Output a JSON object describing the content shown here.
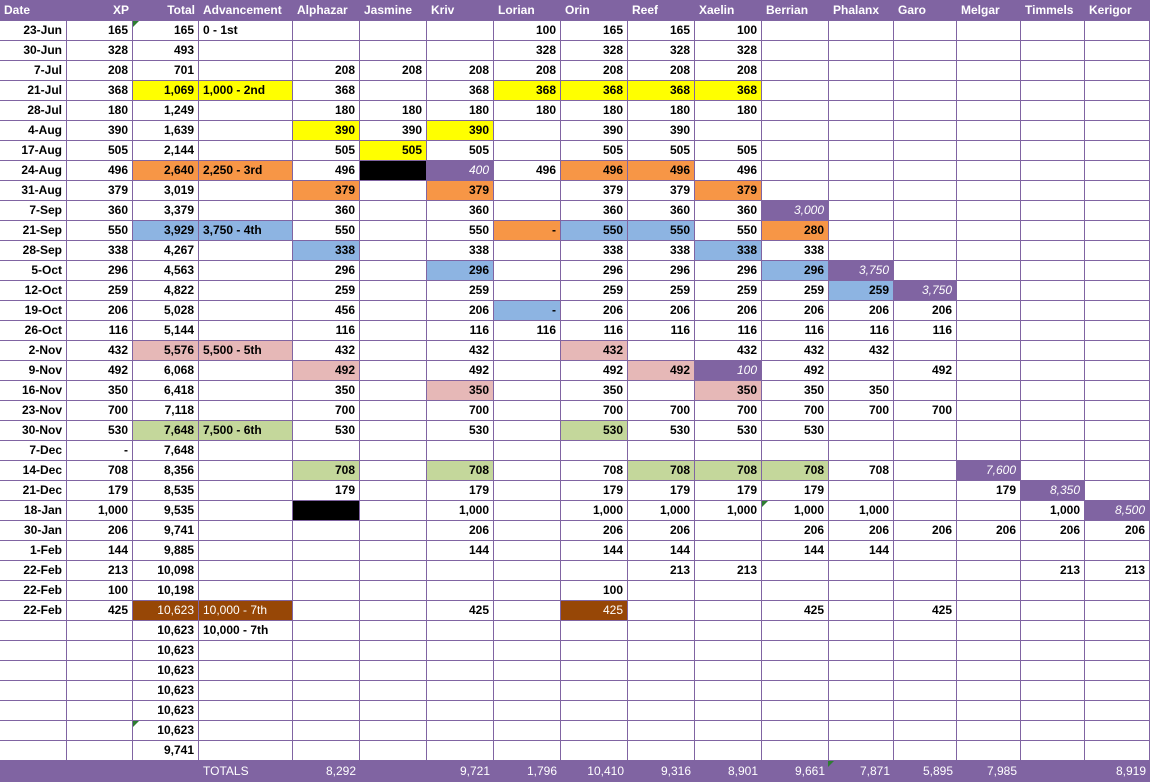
{
  "columns": [
    "Date",
    "XP",
    "Total",
    "Advancement",
    "Alphazar",
    "Jasmine",
    "Kriv",
    "Lorian",
    "Orin",
    "Reef",
    "Xaelin",
    "Berrian",
    "Phalanx",
    "Garo",
    "Melgar",
    "Timmels",
    "Kerigor"
  ],
  "colors": {
    "header": "#8064a2",
    "grid_line": "#8064a2",
    "yellow": "#ffff00",
    "orange": "#f79646",
    "blue": "#8db4e2",
    "pink": "#e6b8b7",
    "green": "#c4d79b",
    "purple": "#8064a2",
    "brown": "#974706",
    "black": "#000000"
  },
  "rows": [
    {
      "c": [
        "23-Jun",
        "165",
        "165",
        "0 - 1st",
        "",
        "",
        "",
        "100",
        "165",
        "165",
        "100",
        "",
        "",
        "",
        "",
        "",
        ""
      ]
    },
    {
      "c": [
        "30-Jun",
        "328",
        "493",
        "",
        "",
        "",
        "",
        "328",
        "328",
        "328",
        "328",
        "",
        "",
        "",
        "",
        "",
        ""
      ]
    },
    {
      "c": [
        "7-Jul",
        "208",
        "701",
        "",
        "208",
        "208",
        "208",
        "208",
        "208",
        "208",
        "208",
        "",
        "",
        "",
        "",
        "",
        ""
      ]
    },
    {
      "c": [
        "21-Jul",
        "368",
        "1,069",
        "1,000 - 2nd",
        "368",
        "",
        "368",
        "368",
        "368",
        "368",
        "368",
        "",
        "",
        "",
        "",
        "",
        ""
      ],
      "fill": {
        "2": "yellow",
        "3": "yellow",
        "7": "yellow",
        "8": "yellow",
        "9": "yellow",
        "10": "yellow"
      }
    },
    {
      "c": [
        "28-Jul",
        "180",
        "1,249",
        "",
        "180",
        "180",
        "180",
        "180",
        "180",
        "180",
        "180",
        "",
        "",
        "",
        "",
        "",
        ""
      ]
    },
    {
      "c": [
        "4-Aug",
        "390",
        "1,639",
        "",
        "390",
        "390",
        "390",
        "",
        "390",
        "390",
        "",
        "",
        "",
        "",
        "",
        "",
        ""
      ],
      "fill": {
        "4": "yellow",
        "6": "yellow"
      }
    },
    {
      "c": [
        "17-Aug",
        "505",
        "2,144",
        "",
        "505",
        "505",
        "505",
        "",
        "505",
        "505",
        "505",
        "",
        "",
        "",
        "",
        "",
        ""
      ],
      "fill": {
        "5": "yellow"
      }
    },
    {
      "c": [
        "24-Aug",
        "496",
        "2,640",
        "2,250 - 3rd",
        "496",
        "",
        "400",
        "496",
        "496",
        "496",
        "496",
        "",
        "",
        "",
        "",
        "",
        ""
      ],
      "fill": {
        "2": "orange",
        "3": "orange",
        "5": "black",
        "6": "purple",
        "8": "orange",
        "9": "orange"
      },
      "ital": [
        6
      ]
    },
    {
      "c": [
        "31-Aug",
        "379",
        "3,019",
        "",
        "379",
        "",
        "379",
        "",
        "379",
        "379",
        "379",
        "",
        "",
        "",
        "",
        "",
        ""
      ],
      "fill": {
        "4": "orange",
        "6": "orange",
        "10": "orange"
      }
    },
    {
      "c": [
        "7-Sep",
        "360",
        "3,379",
        "",
        "360",
        "",
        "360",
        "",
        "360",
        "360",
        "360",
        "3,000",
        "",
        "",
        "",
        "",
        ""
      ],
      "fill": {
        "11": "purple"
      },
      "ital": [
        11
      ]
    },
    {
      "c": [
        "21-Sep",
        "550",
        "3,929",
        "3,750 - 4th",
        "550",
        "",
        "550",
        "-",
        "550",
        "550",
        "550",
        "280",
        "",
        "",
        "",
        "",
        ""
      ],
      "fill": {
        "2": "blue",
        "3": "blue",
        "7": "orange",
        "8": "blue",
        "9": "blue",
        "11": "orange"
      }
    },
    {
      "c": [
        "28-Sep",
        "338",
        "4,267",
        "",
        "338",
        "",
        "338",
        "",
        "338",
        "338",
        "338",
        "338",
        "",
        "",
        "",
        "",
        ""
      ],
      "fill": {
        "4": "blue",
        "10": "blue"
      }
    },
    {
      "c": [
        "5-Oct",
        "296",
        "4,563",
        "",
        "296",
        "",
        "296",
        "",
        "296",
        "296",
        "296",
        "296",
        "3,750",
        "",
        "",
        "",
        ""
      ],
      "fill": {
        "6": "blue",
        "11": "blue",
        "12": "purple"
      },
      "ital": [
        12
      ]
    },
    {
      "c": [
        "12-Oct",
        "259",
        "4,822",
        "",
        "259",
        "",
        "259",
        "",
        "259",
        "259",
        "259",
        "259",
        "259",
        "3,750",
        "",
        "",
        ""
      ],
      "fill": {
        "12": "blue",
        "13": "purple"
      },
      "ital": [
        13
      ]
    },
    {
      "c": [
        "19-Oct",
        "206",
        "5,028",
        "",
        "456",
        "",
        "206",
        "-",
        "206",
        "206",
        "206",
        "206",
        "206",
        "206",
        "",
        "",
        ""
      ],
      "fill": {
        "7": "blue"
      }
    },
    {
      "c": [
        "26-Oct",
        "116",
        "5,144",
        "",
        "116",
        "",
        "116",
        "116",
        "116",
        "116",
        "116",
        "116",
        "116",
        "116",
        "",
        "",
        ""
      ]
    },
    {
      "c": [
        "2-Nov",
        "432",
        "5,576",
        "5,500 - 5th",
        "432",
        "",
        "432",
        "",
        "432",
        "",
        "432",
        "432",
        "432",
        "",
        "",
        "",
        ""
      ],
      "fill": {
        "2": "pink",
        "3": "pink",
        "8": "pink"
      }
    },
    {
      "c": [
        "9-Nov",
        "492",
        "6,068",
        "",
        "492",
        "",
        "492",
        "",
        "492",
        "492",
        "100",
        "492",
        "",
        "492",
        "",
        "",
        ""
      ],
      "fill": {
        "4": "pink",
        "9": "pink",
        "10": "purple"
      },
      "ital": [
        10
      ]
    },
    {
      "c": [
        "16-Nov",
        "350",
        "6,418",
        "",
        "350",
        "",
        "350",
        "",
        "350",
        "",
        "350",
        "350",
        "350",
        "",
        "",
        "",
        ""
      ],
      "fill": {
        "6": "pink",
        "10": "pink"
      }
    },
    {
      "c": [
        "23-Nov",
        "700",
        "7,118",
        "",
        "700",
        "",
        "700",
        "",
        "700",
        "700",
        "700",
        "700",
        "700",
        "700",
        "",
        "",
        ""
      ]
    },
    {
      "c": [
        "30-Nov",
        "530",
        "7,648",
        "7,500 - 6th",
        "530",
        "",
        "530",
        "",
        "530",
        "530",
        "530",
        "530",
        "",
        "",
        "",
        "",
        ""
      ],
      "fill": {
        "2": "green",
        "3": "green",
        "8": "green"
      }
    },
    {
      "c": [
        "7-Dec",
        "-",
        "7,648",
        "",
        "",
        "",
        "",
        "",
        "",
        "",
        "",
        "",
        "",
        "",
        "",
        "",
        ""
      ]
    },
    {
      "c": [
        "14-Dec",
        "708",
        "8,356",
        "",
        "708",
        "",
        "708",
        "",
        "708",
        "708",
        "708",
        "708",
        "708",
        "",
        "7,600",
        "",
        ""
      ],
      "fill": {
        "4": "green",
        "6": "green",
        "9": "green",
        "10": "green",
        "11": "green",
        "14": "purple"
      },
      "ital": [
        14
      ]
    },
    {
      "c": [
        "21-Dec",
        "179",
        "8,535",
        "",
        "179",
        "",
        "179",
        "",
        "179",
        "179",
        "179",
        "179",
        "",
        "",
        "179",
        "8,350",
        ""
      ],
      "fill": {
        "15": "purple"
      },
      "ital": [
        15
      ]
    },
    {
      "c": [
        "18-Jan",
        "1,000",
        "9,535",
        "",
        "",
        "",
        "1,000",
        "",
        "1,000",
        "1,000",
        "1,000",
        "1,000",
        "1,000",
        "",
        "",
        "1,000",
        "8,500"
      ],
      "fill": {
        "4": "black",
        "16": "purple"
      },
      "ital": [
        16
      ]
    },
    {
      "c": [
        "30-Jan",
        "206",
        "9,741",
        "",
        "",
        "",
        "206",
        "",
        "206",
        "206",
        "",
        "206",
        "206",
        "206",
        "206",
        "206",
        "206"
      ]
    },
    {
      "c": [
        "1-Feb",
        "144",
        "9,885",
        "",
        "",
        "",
        "144",
        "",
        "144",
        "144",
        "",
        "144",
        "144",
        "",
        "",
        "",
        ""
      ]
    },
    {
      "c": [
        "22-Feb",
        "213",
        "10,098",
        "",
        "",
        "",
        "",
        "",
        "",
        "213",
        "213",
        "",
        "",
        "",
        "",
        "213",
        "213"
      ]
    },
    {
      "c": [
        "22-Feb",
        "100",
        "10,198",
        "",
        "",
        "",
        "",
        "",
        "100",
        "",
        "",
        "",
        "",
        "",
        "",
        "",
        ""
      ]
    },
    {
      "c": [
        "22-Feb",
        "425",
        "10,623",
        "10,000 - 7th",
        "",
        "",
        "425",
        "",
        "425",
        "",
        "",
        "425",
        "",
        "425",
        "",
        "",
        ""
      ],
      "fill": {
        "2": "brown",
        "3": "brown",
        "8": "brown"
      },
      "white": [
        2,
        3,
        8
      ]
    },
    {
      "c": [
        "",
        "",
        "10,623",
        "10,000 - 7th",
        "",
        "",
        "",
        "",
        "",
        "",
        "",
        "",
        "",
        "",
        "",
        "",
        ""
      ]
    },
    {
      "c": [
        "",
        "",
        "10,623",
        "",
        "",
        "",
        "",
        "",
        "",
        "",
        "",
        "",
        "",
        "",
        "",
        "",
        ""
      ]
    },
    {
      "c": [
        "",
        "",
        "10,623",
        "",
        "",
        "",
        "",
        "",
        "",
        "",
        "",
        "",
        "",
        "",
        "",
        "",
        ""
      ]
    },
    {
      "c": [
        "",
        "",
        "10,623",
        "",
        "",
        "",
        "",
        "",
        "",
        "",
        "",
        "",
        "",
        "",
        "",
        "",
        ""
      ]
    },
    {
      "c": [
        "",
        "",
        "10,623",
        "",
        "",
        "",
        "",
        "",
        "",
        "",
        "",
        "",
        "",
        "",
        "",
        "",
        ""
      ]
    },
    {
      "c": [
        "",
        "",
        "10,623",
        "",
        "",
        "",
        "",
        "",
        "",
        "",
        "",
        "",
        "",
        "",
        "",
        "",
        ""
      ]
    },
    {
      "c": [
        "",
        "",
        "9,741",
        "",
        "",
        "",
        "",
        "",
        "",
        "",
        "",
        "",
        "",
        "",
        "",
        "",
        ""
      ]
    }
  ],
  "totals": {
    "label": "TOTALS",
    "values": [
      "",
      "",
      "",
      "",
      "8,292",
      "",
      "9,721",
      "1,796",
      "10,410",
      "9,316",
      "8,901",
      "9,661",
      "7,871",
      "5,895",
      "7,985",
      "",
      "8,919"
    ]
  }
}
